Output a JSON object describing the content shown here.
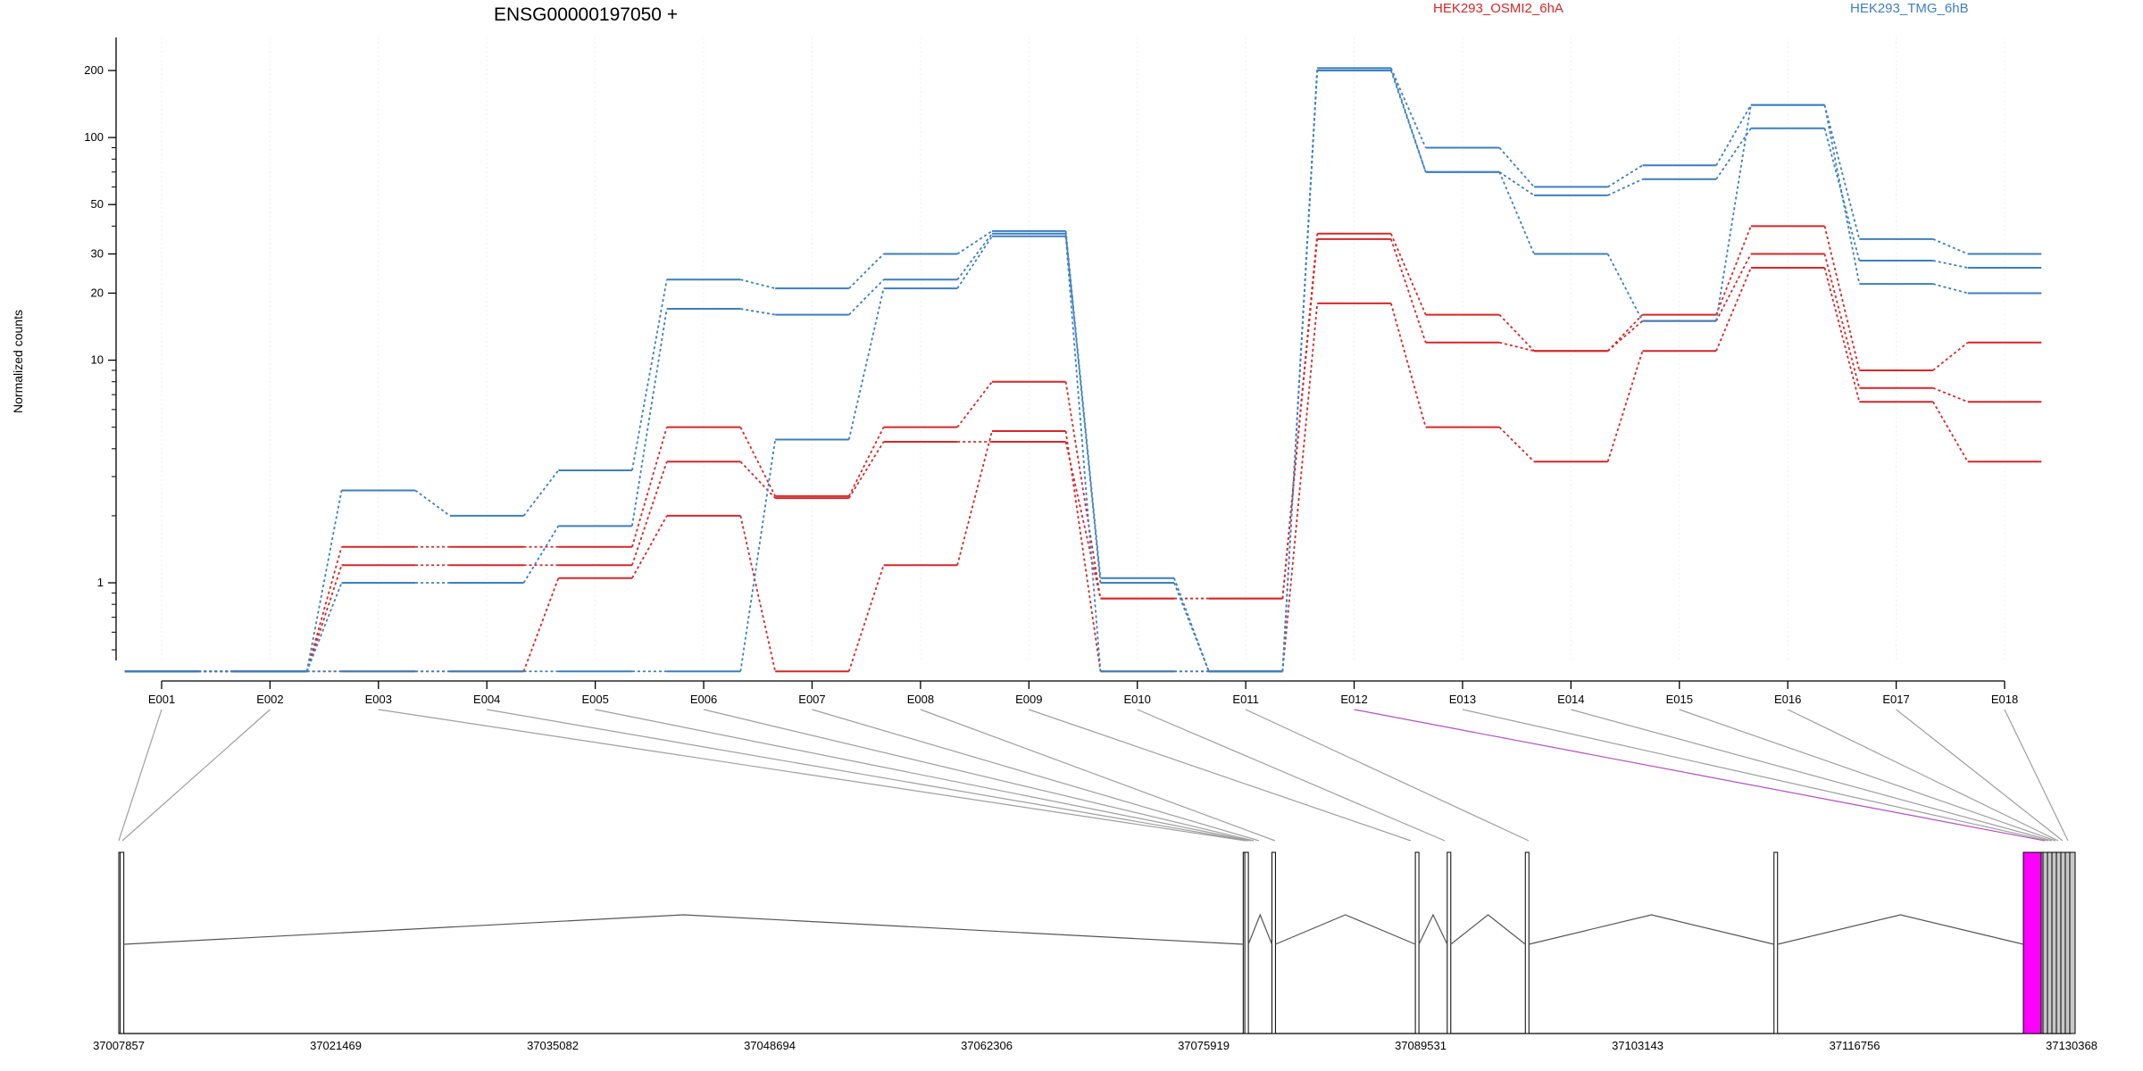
{
  "chart_data": {
    "type": "line",
    "title": "ENSG00000197050 +",
    "ylabel": "Normalized counts",
    "yscale": "log",
    "ylim": [
      0.3,
      300
    ],
    "yticks": [
      "1",
      "10",
      "20",
      "30",
      "50",
      "100",
      "200"
    ],
    "categories": [
      "E001",
      "E002",
      "E003",
      "E004",
      "E005",
      "E006",
      "E007",
      "E008",
      "E009",
      "E010",
      "E011",
      "E012",
      "E013",
      "E014",
      "E015",
      "E016",
      "E017",
      "E018"
    ],
    "legend": [
      {
        "label": "HEK293_OSMI2_6hA",
        "color": "#d62728"
      },
      {
        "label": "HEK293_TMG_6hB",
        "color": "#3c7fbf"
      }
    ],
    "series": [
      {
        "group": "HEK293_OSMI2_6hA",
        "values": [
          0.4,
          0.4,
          1.45,
          1.45,
          1.45,
          5.0,
          2.45,
          5.0,
          8.0,
          0.85,
          0.85,
          37,
          16,
          11,
          16,
          40,
          9.0,
          12
        ]
      },
      {
        "group": "HEK293_OSMI2_6hA",
        "values": [
          0.4,
          0.4,
          1.2,
          1.2,
          1.2,
          3.5,
          2.4,
          4.3,
          4.3,
          0.85,
          0.85,
          35,
          12,
          11,
          15,
          30,
          7.5,
          6.5
        ]
      },
      {
        "group": "HEK293_OSMI2_6hA",
        "values": [
          0.4,
          0.4,
          0.4,
          0.4,
          1.05,
          2.0,
          0.4,
          1.2,
          4.8,
          0.4,
          0.4,
          18,
          5.0,
          3.5,
          11,
          26,
          6.5,
          3.5
        ]
      },
      {
        "group": "HEK293_TMG_6hB",
        "values": [
          0.4,
          0.4,
          2.6,
          2.0,
          3.2,
          23,
          21,
          30,
          38,
          1.05,
          0.4,
          205,
          90,
          60,
          75,
          140,
          35,
          30
        ]
      },
      {
        "group": "HEK293_TMG_6hB",
        "values": [
          0.4,
          0.4,
          1.0,
          1.0,
          1.8,
          17,
          16,
          23,
          37,
          1.0,
          0.4,
          205,
          70,
          55,
          65,
          110,
          28,
          26
        ]
      },
      {
        "group": "HEK293_TMG_6hB",
        "values": [
          0.4,
          0.4,
          0.4,
          0.4,
          0.4,
          0.4,
          4.4,
          21,
          36,
          0.4,
          0.4,
          200,
          70,
          30,
          15,
          140,
          22,
          20
        ]
      }
    ],
    "genomic_axis": {
      "tick_labels": [
        "37007857",
        "37021469",
        "37035082",
        "37048694",
        "37062306",
        "37075919",
        "37089531",
        "37103143",
        "37116756",
        "37130368"
      ],
      "start": 37007857,
      "end": 37130368
    },
    "gene_model": {
      "exon_starts": [
        37007857,
        37007950,
        37078400,
        37078500,
        37080200,
        37089200,
        37091200,
        37096100,
        37111700
      ],
      "highlighted_exon": "E012",
      "highlight_color": "#ff00ff",
      "line_color": "#9e9e9e",
      "highlight_line_color": "#b04fc0"
    }
  }
}
